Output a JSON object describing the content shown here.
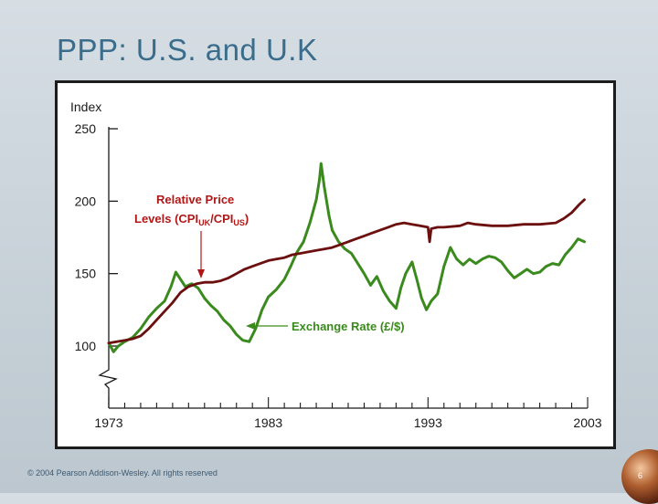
{
  "slide": {
    "title": "PPP: U.S. and U.K",
    "footer": "© 2004 Pearson Addison-Wesley. All rights reserved",
    "page_number": "6"
  },
  "chart_data": {
    "type": "line",
    "ylabel": "Index",
    "ylim": [
      100,
      250
    ],
    "yticks": [
      "100",
      "150",
      "200",
      "250"
    ],
    "xlim": [
      1973,
      2003
    ],
    "xticks": [
      "1973",
      "1983",
      "1993",
      "2003"
    ],
    "grid": false,
    "annotations": {
      "relative_price": {
        "line1": "Relative Price",
        "line2_prefix": "Levels (CPI",
        "uk_sub": "UK",
        "slash": "/CPI",
        "us_sub": "US",
        "close": ")",
        "color": "#b01818"
      },
      "exchange_rate": {
        "text": "Exchange Rate (£/$)",
        "color": "#3a8a1e"
      }
    },
    "series": [
      {
        "key": "relative_price",
        "color": "#6b0f0f",
        "points": [
          [
            1973.0,
            102
          ],
          [
            1973.5,
            103
          ],
          [
            1974.0,
            104
          ],
          [
            1974.5,
            105
          ],
          [
            1975.0,
            107
          ],
          [
            1975.5,
            112
          ],
          [
            1976.0,
            118
          ],
          [
            1976.5,
            124
          ],
          [
            1977.0,
            130
          ],
          [
            1977.5,
            137
          ],
          [
            1978.0,
            141
          ],
          [
            1978.5,
            143
          ],
          [
            1979.0,
            144
          ],
          [
            1979.5,
            144
          ],
          [
            1980.0,
            145
          ],
          [
            1980.5,
            147
          ],
          [
            1981.0,
            150
          ],
          [
            1981.5,
            153
          ],
          [
            1982.0,
            155
          ],
          [
            1982.5,
            157
          ],
          [
            1983.0,
            159
          ],
          [
            1983.5,
            160
          ],
          [
            1984.0,
            161
          ],
          [
            1984.5,
            163
          ],
          [
            1985.0,
            164
          ],
          [
            1985.5,
            165
          ],
          [
            1986.0,
            166
          ],
          [
            1986.5,
            167
          ],
          [
            1987.0,
            168
          ],
          [
            1987.5,
            170
          ],
          [
            1988.0,
            172
          ],
          [
            1988.5,
            174
          ],
          [
            1989.0,
            176
          ],
          [
            1989.5,
            178
          ],
          [
            1990.0,
            180
          ],
          [
            1990.5,
            182
          ],
          [
            1991.0,
            184
          ],
          [
            1991.5,
            185
          ],
          [
            1992.0,
            184
          ],
          [
            1992.5,
            183
          ],
          [
            1993.0,
            182
          ],
          [
            1993.1,
            172
          ],
          [
            1993.2,
            181
          ],
          [
            1993.6,
            182
          ],
          [
            1994.0,
            182
          ],
          [
            1995.0,
            183
          ],
          [
            1995.5,
            185
          ],
          [
            1996.0,
            184
          ],
          [
            1997.0,
            183
          ],
          [
            1998.0,
            183
          ],
          [
            1999.0,
            184
          ],
          [
            2000.0,
            184
          ],
          [
            2001.0,
            185
          ],
          [
            2001.5,
            188
          ],
          [
            2002.0,
            192
          ],
          [
            2002.5,
            198
          ],
          [
            2002.8,
            201
          ]
        ]
      },
      {
        "key": "exchange_rate",
        "color": "#3a8a1e",
        "points": [
          [
            1973.0,
            102
          ],
          [
            1973.3,
            96
          ],
          [
            1973.6,
            100
          ],
          [
            1974.0,
            103
          ],
          [
            1974.5,
            106
          ],
          [
            1975.0,
            112
          ],
          [
            1975.5,
            120
          ],
          [
            1976.0,
            126
          ],
          [
            1976.5,
            131
          ],
          [
            1976.9,
            141
          ],
          [
            1977.2,
            151
          ],
          [
            1977.5,
            146
          ],
          [
            1977.8,
            141
          ],
          [
            1978.2,
            143
          ],
          [
            1978.6,
            140
          ],
          [
            1979.0,
            133
          ],
          [
            1979.4,
            128
          ],
          [
            1979.8,
            124
          ],
          [
            1980.2,
            118
          ],
          [
            1980.6,
            114
          ],
          [
            1981.0,
            108
          ],
          [
            1981.4,
            104
          ],
          [
            1981.8,
            103
          ],
          [
            1982.2,
            112
          ],
          [
            1982.6,
            125
          ],
          [
            1983.0,
            134
          ],
          [
            1983.5,
            139
          ],
          [
            1984.0,
            146
          ],
          [
            1984.4,
            155
          ],
          [
            1984.8,
            165
          ],
          [
            1985.2,
            172
          ],
          [
            1985.6,
            185
          ],
          [
            1986.0,
            201
          ],
          [
            1986.2,
            215
          ],
          [
            1986.3,
            226
          ],
          [
            1986.5,
            210
          ],
          [
            1986.8,
            190
          ],
          [
            1987.0,
            180
          ],
          [
            1987.4,
            172
          ],
          [
            1987.8,
            167
          ],
          [
            1988.2,
            164
          ],
          [
            1988.6,
            157
          ],
          [
            1989.0,
            150
          ],
          [
            1989.4,
            142
          ],
          [
            1989.8,
            148
          ],
          [
            1990.2,
            138
          ],
          [
            1990.6,
            131
          ],
          [
            1991.0,
            126
          ],
          [
            1991.3,
            140
          ],
          [
            1991.6,
            150
          ],
          [
            1992.0,
            158
          ],
          [
            1992.3,
            146
          ],
          [
            1992.6,
            133
          ],
          [
            1992.9,
            125
          ],
          [
            1993.2,
            131
          ],
          [
            1993.6,
            136
          ],
          [
            1994.0,
            155
          ],
          [
            1994.4,
            168
          ],
          [
            1994.8,
            160
          ],
          [
            1995.2,
            156
          ],
          [
            1995.6,
            160
          ],
          [
            1996.0,
            157
          ],
          [
            1996.4,
            160
          ],
          [
            1996.8,
            162
          ],
          [
            1997.2,
            161
          ],
          [
            1997.6,
            158
          ],
          [
            1998.0,
            152
          ],
          [
            1998.4,
            147
          ],
          [
            1998.8,
            150
          ],
          [
            1999.2,
            153
          ],
          [
            1999.6,
            150
          ],
          [
            2000.0,
            151
          ],
          [
            2000.4,
            155
          ],
          [
            2000.8,
            157
          ],
          [
            2001.2,
            156
          ],
          [
            2001.6,
            163
          ],
          [
            2002.0,
            168
          ],
          [
            2002.4,
            174
          ],
          [
            2002.8,
            172
          ]
        ]
      }
    ]
  }
}
